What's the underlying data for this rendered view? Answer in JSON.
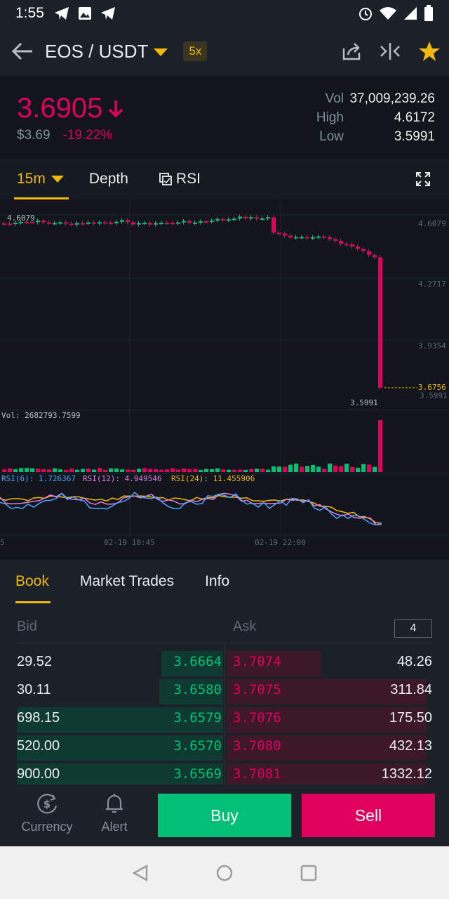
{
  "status_bar": {
    "time": "1:55"
  },
  "header": {
    "pair": "EOS / USDT",
    "leverage": "5x"
  },
  "ticker": {
    "price": "3.6905",
    "price_usd": "$3.69",
    "change": "-19.22%",
    "stats": [
      {
        "label": "Vol",
        "value": "37,009,239.26"
      },
      {
        "label": "High",
        "value": "4.6172"
      },
      {
        "label": "Low",
        "value": "3.5991"
      }
    ]
  },
  "chart_tabs": {
    "interval": "15m",
    "depth": "Depth",
    "indicator": "RSI"
  },
  "chart_labels": {
    "axis_ticks": [
      "4.6079",
      "4.2717",
      "3.9354",
      "3.5991"
    ],
    "high_marker": "4.6079",
    "low_marker": "3.5991",
    "current_price": "3.6756",
    "volume": "Vol: 2682793.7599",
    "rsi6": "RSI(6): 1.726367",
    "rsi12": "RSI(12): 4.949546",
    "rsi24": "RSI(24): 11.455906",
    "time_labels": [
      "5",
      "02-19 10:45",
      "02-19 22:00"
    ]
  },
  "chart_data": {
    "type": "candlestick",
    "ylim": [
      3.5991,
      4.6079
    ],
    "price_axis_ticks": [
      4.6079,
      4.2717,
      3.9354,
      3.5991
    ],
    "current_price": 3.6756,
    "series_colors": {
      "up": "#02c076",
      "down": "#e0005e",
      "rsi6": "#4da3ff",
      "rsi12": "#e27ae6",
      "rsi24": "#f0b90b"
    }
  },
  "book_tabs": [
    "Book",
    "Market Trades",
    "Info"
  ],
  "book": {
    "bid_label": "Bid",
    "ask_label": "Ask",
    "depth": "4",
    "rows": [
      {
        "bid_qty": "29.52",
        "bid_price": "3.6664",
        "ask_price": "3.7074",
        "ask_qty": "48.26",
        "bid_fill": 0.3,
        "ask_fill": 0.46
      },
      {
        "bid_qty": "30.11",
        "bid_price": "3.6580",
        "ask_price": "3.7075",
        "ask_qty": "311.84",
        "bid_fill": 0.31,
        "ask_fill": 0.97
      },
      {
        "bid_qty": "698.15",
        "bid_price": "3.6579",
        "ask_price": "3.7076",
        "ask_qty": "175.50",
        "bid_fill": 1.0,
        "ask_fill": 0.97
      },
      {
        "bid_qty": "520.00",
        "bid_price": "3.6570",
        "ask_price": "3.7080",
        "ask_qty": "432.13",
        "bid_fill": 1.0,
        "ask_fill": 0.97
      },
      {
        "bid_qty": "900.00",
        "bid_price": "3.6569",
        "ask_price": "3.7081",
        "ask_qty": "1332.12",
        "bid_fill": 1.0,
        "ask_fill": 0.97
      }
    ]
  },
  "bottom_bar": {
    "currency": "Currency",
    "alert": "Alert",
    "buy": "Buy",
    "sell": "Sell"
  },
  "icons": [
    "telegram-icon",
    "image-icon",
    "alarm-icon",
    "wifi-icon",
    "signal-icon",
    "battery-icon",
    "back-arrow-icon",
    "share-icon",
    "compare-icon",
    "star-icon",
    "fullscreen-icon",
    "currency-icon",
    "bell-icon"
  ]
}
